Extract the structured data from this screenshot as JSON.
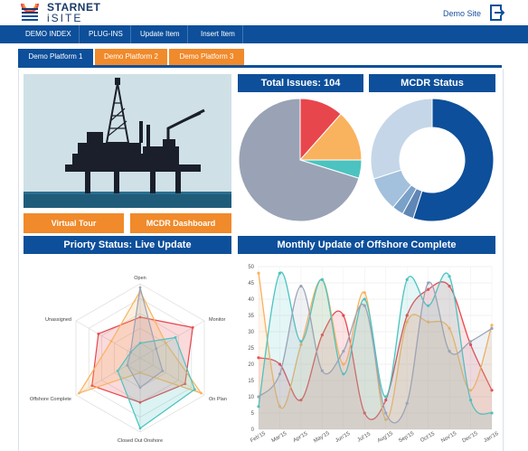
{
  "brand": {
    "line1": "STARNET",
    "line2": "iSITE"
  },
  "header": {
    "demo_site": "Demo Site"
  },
  "nav": [
    "DEMO INDEX",
    "PLUG-INS",
    "Update Item",
    "Insert Item"
  ],
  "tabs": [
    "Demo Platform 1",
    "Demo Platform 2",
    "Demo Platform 3"
  ],
  "buttons": {
    "virtual_tour": "Virtual Tour",
    "mcdr_dashboard": "MCDR Dashboard"
  },
  "panels": {
    "total_issues": "Total Issues: 104",
    "mcdr_status": "MCDR Status",
    "priority_status": "Priorty Status: Live Update",
    "monthly_update": "Monthly Update of Offshore Complete"
  },
  "colors": {
    "navy": "#0d4f9a",
    "orange": "#f08a2b",
    "red": "#e8464d",
    "amber": "#f9b25e",
    "teal": "#4cc3c0",
    "gray": "#9aa3b5"
  },
  "chart_data": [
    {
      "type": "pie",
      "labels": [
        "Red",
        "Orange",
        "Teal",
        "Gray"
      ],
      "values": [
        12,
        14,
        5,
        73
      ],
      "colors": [
        "#e8464d",
        "#f9b25e",
        "#4cc3c0",
        "#9aa3b5"
      ]
    },
    {
      "type": "pie",
      "donut": true,
      "values": [
        55,
        3,
        3,
        9,
        30
      ],
      "colors": [
        "#0d4f9a",
        "#5f86b5",
        "#7aa1c8",
        "#a3c0dc",
        "#c5d6e8"
      ]
    },
    {
      "type": "radar",
      "labels": [
        "Open",
        "Monitor",
        "On Plan",
        "Closed Out Onshore",
        "Offshore Complete",
        "Unassigned"
      ],
      "max": 100,
      "series": [
        {
          "values": [
            55,
            82,
            70,
            60,
            75,
            65
          ],
          "color": "#e8464d"
        },
        {
          "values": [
            90,
            40,
            95,
            20,
            95,
            45
          ],
          "color": "#f9b25e"
        },
        {
          "values": [
            20,
            55,
            85,
            95,
            35,
            15
          ],
          "color": "#4cc3c0"
        },
        {
          "values": [
            95,
            25,
            35,
            40,
            20,
            15
          ],
          "color": "#9aa3b5"
        }
      ]
    },
    {
      "type": "area",
      "x": [
        "Feb'15",
        "Mar'15",
        "Apr'15",
        "May'15",
        "Jun'15",
        "Jul'15",
        "Aug'15",
        "Sep'15",
        "Oct'15",
        "Nov'15",
        "Dec'15",
        "Jan'16"
      ],
      "ylim": [
        0,
        50
      ],
      "yticks": [
        0,
        5,
        10,
        15,
        20,
        25,
        30,
        35,
        40,
        45,
        50
      ],
      "series": [
        {
          "values": [
            22,
            20,
            9,
            29,
            35,
            5,
            9,
            35,
            43,
            44,
            26,
            12
          ],
          "color": "#e8464d"
        },
        {
          "values": [
            48,
            7,
            26,
            46,
            20,
            42,
            3,
            33,
            33,
            31,
            12,
            32
          ],
          "color": "#f9b25e"
        },
        {
          "values": [
            7,
            48,
            27,
            46,
            17,
            40,
            10,
            46,
            38,
            47,
            9,
            5
          ],
          "color": "#4cc3c0"
        },
        {
          "values": [
            10,
            17,
            44,
            18,
            24,
            38,
            5,
            8,
            45,
            24,
            27,
            31
          ],
          "color": "#9aa3b5"
        }
      ]
    }
  ]
}
